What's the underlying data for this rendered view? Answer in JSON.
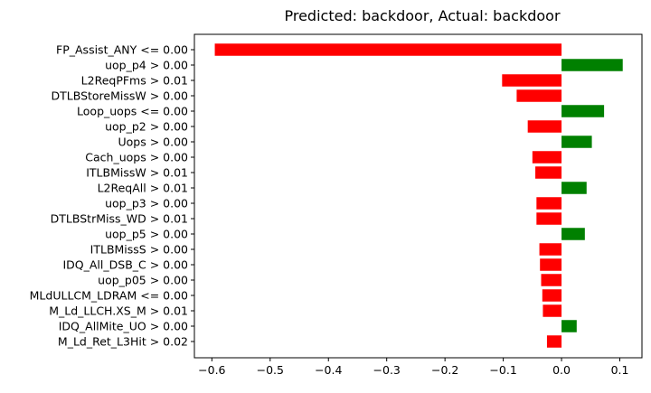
{
  "chart_data": {
    "type": "bar",
    "orientation": "horizontal",
    "title": "Predicted: backdoor, Actual: backdoor",
    "xlabel": "",
    "ylabel": "",
    "xlim": [
      -0.63,
      0.138
    ],
    "xticks": [
      -0.6,
      -0.5,
      -0.4,
      -0.3,
      -0.2,
      -0.1,
      0.0,
      0.1
    ],
    "xtick_labels": [
      "−0.6",
      "−0.5",
      "−0.4",
      "−0.3",
      "−0.2",
      "−0.1",
      "0.0",
      "0.1"
    ],
    "grid": false,
    "colors": {
      "positive": "#008000",
      "negative": "#ff0000"
    },
    "categories": [
      "FP_Assist_ANY <= 0.00",
      "uop_p4 > 0.00",
      "L2ReqPFms > 0.01",
      "DTLBStoreMissW > 0.00",
      "Loop_uops <= 0.00",
      "uop_p2 > 0.00",
      "Uops > 0.00",
      "Cach_uops > 0.00",
      "ITLBMissW > 0.01",
      "L2ReqAll > 0.01",
      "uop_p3 > 0.00",
      "DTLBStrMiss_WD > 0.01",
      "uop_p5 > 0.00",
      "ITLBMissS > 0.00",
      "IDQ_All_DSB_C > 0.00",
      "uop_p05 > 0.00",
      "MLdULLCM_LDRAM <= 0.00",
      "M_Ld_LLCH.XS_M > 0.01",
      "IDQ_AllMite_UO > 0.00",
      "M_Ld_Ret_L3Hit > 0.02"
    ],
    "values": [
      -0.595,
      0.105,
      -0.102,
      -0.077,
      0.073,
      -0.058,
      0.052,
      -0.05,
      -0.045,
      0.043,
      -0.043,
      -0.043,
      0.04,
      -0.038,
      -0.037,
      -0.035,
      -0.033,
      -0.032,
      0.026,
      -0.025
    ]
  }
}
